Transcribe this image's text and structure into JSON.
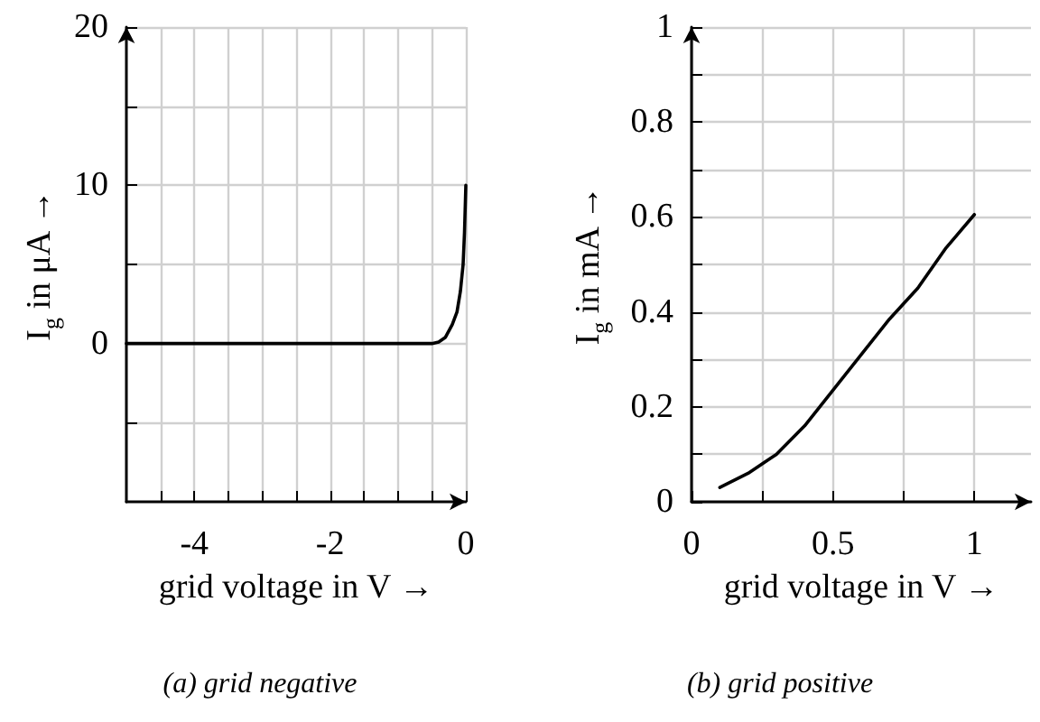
{
  "chart_data": [
    {
      "type": "line",
      "title": "(a) grid negative",
      "xlabel": "grid voltage in V →",
      "ylabel": "I$_{g}$ in μA →",
      "xlim": [
        -5,
        0
      ],
      "ylim": [
        -10,
        20
      ],
      "xticks": [
        {
          "value": -4.5,
          "label": null
        },
        -4,
        {
          "value": -3.5,
          "label": null
        },
        {
          "value": -3,
          "label": null
        },
        {
          "value": -2.5,
          "label": null
        },
        -2,
        {
          "value": -1.5,
          "label": null
        },
        {
          "value": -1,
          "label": null
        },
        {
          "value": -0.5,
          "label": null
        },
        0
      ],
      "yticks": [
        {
          "value": -5,
          "label": null
        },
        0,
        {
          "value": 5,
          "label": null
        },
        10,
        {
          "value": 15,
          "label": null
        },
        20
      ],
      "grid": true,
      "marker": "none",
      "line_style": "solid",
      "series": [
        {
          "color": "#000000",
          "x": [
            -5,
            -0.5,
            -0.4,
            -0.3,
            -0.2,
            -0.13,
            -0.08,
            -0.04,
            -0.02,
            0
          ],
          "values": [
            0,
            0,
            0.1,
            0.4,
            1.2,
            2,
            3.3,
            5,
            7,
            10
          ]
        }
      ]
    },
    {
      "type": "line",
      "title": "(b) grid positive",
      "xlabel": "grid voltage in V →",
      "ylabel": "I$_{g}$ in mA →",
      "xlim": [
        0,
        1.2
      ],
      "ylim": [
        0,
        1
      ],
      "xticks": [
        0,
        {
          "value": 0.25,
          "label": null
        },
        0.5,
        {
          "value": 0.75,
          "label": null
        },
        1
      ],
      "yticks": [
        0,
        {
          "value": 0.1,
          "label": null
        },
        0.2,
        {
          "value": 0.3,
          "label": null
        },
        0.4,
        {
          "value": 0.5,
          "label": null
        },
        0.6,
        {
          "value": 0.7,
          "label": null
        },
        0.8,
        {
          "value": 0.9,
          "label": null
        },
        1
      ],
      "grid": true,
      "marker": "none",
      "line_style": "solid",
      "series": [
        {
          "color": "#000000",
          "x": [
            0.1,
            0.2,
            0.3,
            0.4,
            0.5,
            0.6,
            0.7,
            0.8,
            0.9,
            1.0
          ],
          "values": [
            0.03,
            0.06,
            0.1,
            0.16,
            0.235,
            0.31,
            0.385,
            0.45,
            0.535,
            0.605
          ]
        }
      ]
    }
  ]
}
